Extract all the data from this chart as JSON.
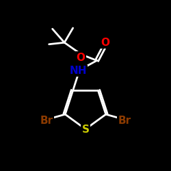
{
  "bg_color": "#000000",
  "atom_colors": {
    "C": "#ffffff",
    "O": "#ff0000",
    "N": "#0000cc",
    "S": "#cccc00",
    "Br": "#8b3a00"
  },
  "bond_color": "#ffffff",
  "bond_width": 2.0,
  "font_size_atom": 11,
  "fig_size": [
    2.5,
    2.5
  ],
  "dpi": 100
}
